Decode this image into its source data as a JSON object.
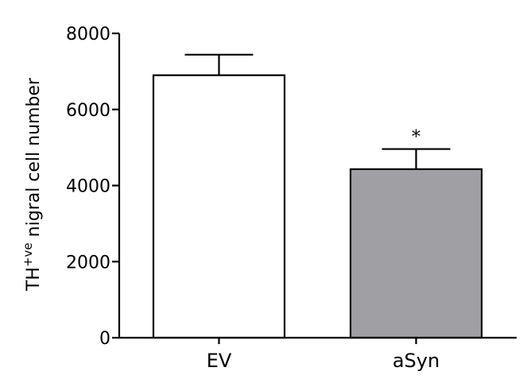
{
  "chart_data": {
    "type": "bar",
    "categories": [
      "EV",
      "aSyn"
    ],
    "values": [
      6900,
      4430
    ],
    "errors": [
      540,
      530
    ],
    "bar_colors": [
      "#ffffff",
      "#a0a0a4"
    ],
    "edge_color": "#000000",
    "ylabel_main": "TH",
    "ylabel_sup": "+ve",
    "ylabel_rest": " nigral cell number",
    "ylim": [
      0,
      8000
    ],
    "yticks": [
      0,
      2000,
      4000,
      6000,
      8000
    ],
    "annotations": [
      {
        "category": "aSyn",
        "text": "*"
      }
    ],
    "grid": false,
    "legend": false
  }
}
